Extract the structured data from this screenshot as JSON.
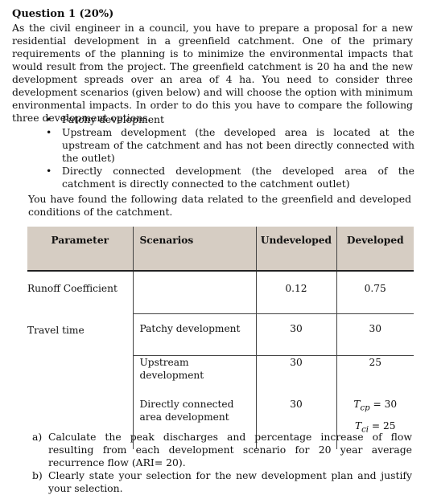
{
  "question": {
    "title": "Question 1 (20%)",
    "paragraph": "As the civil engineer in a council, you have to prepare a proposal for a new residential development in a greenfield catchment. One of the primary requirements of the planning is to minimize the environmental impacts that would result from the project. The greenfield catchment is 20 ha and the new development spreads over an area of 4 ha. You need to consider three development scenarios (given below) and will choose the option with minimum environmental impacts. In order to do this you have to compare the following three development options.",
    "bullet_glyph": "•",
    "options": [
      "Patchy development",
      "Upstream development (the developed area is located at the upstream of the catchment and has not been directly connected with the outlet)",
      "Directly connected development (the developed area of the catchment is directly connected to the catchment outlet)"
    ],
    "intro_table": "You have found the following data related to the greenfield and developed conditions of the catchment."
  },
  "table": {
    "headers": [
      "Parameter",
      "Scenarios",
      "Undeveloped",
      "Developed"
    ],
    "runoff": {
      "parameter": "Runoff Coefficient",
      "scenario": "",
      "undeveloped": "0.12",
      "developed": "0.75"
    },
    "travel_parameter": "Travel time",
    "patchy": {
      "scenario": "Patchy development",
      "undeveloped": "30",
      "developed": "30"
    },
    "upstream": {
      "scenario_line1": "Upstream",
      "scenario_line2": "development",
      "undeveloped": "30",
      "developed": "25"
    },
    "direct": {
      "scenario_line1": "Directly connected",
      "scenario_line2": "area development",
      "undeveloped": "30",
      "developed_a_sym": "T",
      "developed_a_sub": "cp",
      "developed_a_val": "= 30",
      "developed_b_sym": "T",
      "developed_b_sub": "ci",
      "developed_b_val": "= 25"
    }
  },
  "tasks": [
    {
      "label": "a)",
      "text": "Calculate the peak discharges and percentage increase of flow resulting from each development scenario for 20 year average recurrence flow (ARI= 20)."
    },
    {
      "label": "b)",
      "text": "Clearly state your selection for the new development plan and justify your selection."
    }
  ]
}
